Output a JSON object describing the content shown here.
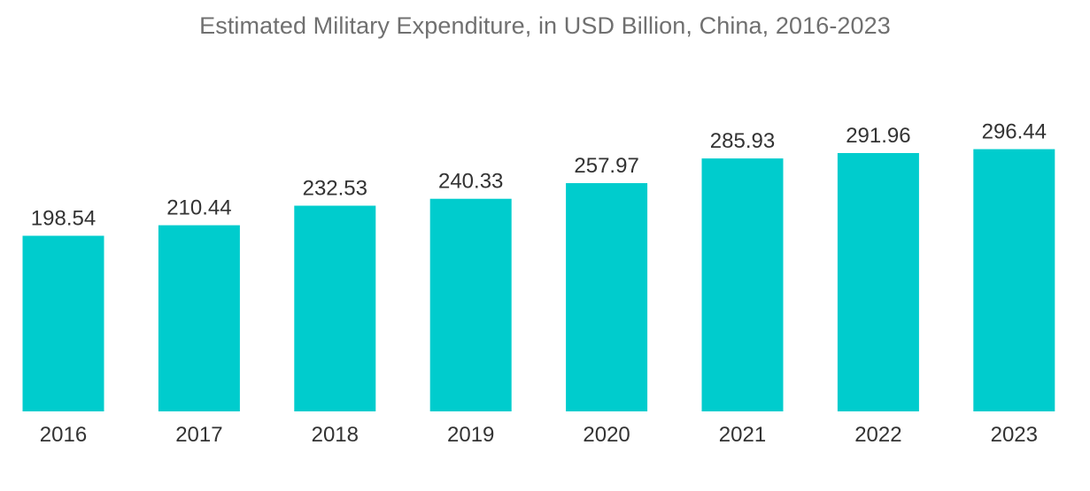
{
  "colors": {
    "bar": "#00cccd",
    "title": "#707070",
    "label": "#333333",
    "background": "#ffffff"
  },
  "chart_data": {
    "type": "bar",
    "title": "Estimated Military Expenditure, in USD Billion, China, 2016-2023",
    "xlabel": "",
    "ylabel": "",
    "categories": [
      "2016",
      "2017",
      "2018",
      "2019",
      "2020",
      "2021",
      "2022",
      "2023"
    ],
    "values": [
      198.54,
      210.44,
      232.53,
      240.33,
      257.97,
      285.93,
      291.96,
      296.44
    ],
    "value_labels": [
      "198.54",
      "210.44",
      "232.53",
      "240.33",
      "257.97",
      "285.93",
      "291.96",
      "296.44"
    ],
    "ylim": [
      0,
      300
    ],
    "grid": false,
    "legend": "none",
    "y_axis_visible": false
  }
}
